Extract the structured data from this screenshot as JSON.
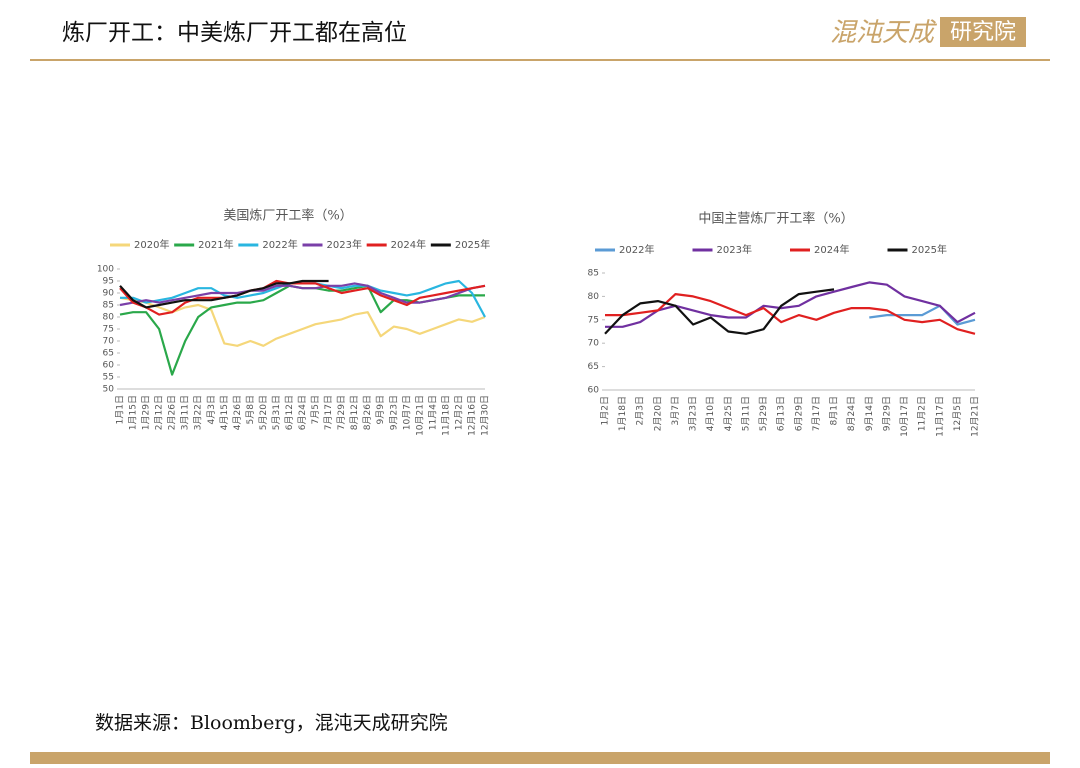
{
  "header": {
    "title": "炼厂开工：中美炼厂开工都在高位",
    "logo_name": "混沌天成",
    "logo_suffix": "研究院"
  },
  "source": "数据来源：Bloomberg，混沌天成研究院",
  "chart_data": [
    {
      "type": "line",
      "title": "美国炼厂开工率（%）",
      "legend": "top",
      "categories": [
        "1月1日",
        "1月15日",
        "1月29日",
        "2月12日",
        "2月26日",
        "3月11日",
        "3月22日",
        "4月3日",
        "4月15日",
        "4月26日",
        "5月8日",
        "5月20日",
        "5月31日",
        "6月12日",
        "6月24日",
        "7月5日",
        "7月17日",
        "7月29日",
        "8月12日",
        "8月26日",
        "9月9日",
        "9月23日",
        "10月7日",
        "10月21日",
        "11月4日",
        "11月18日",
        "12月2日",
        "12月16日",
        "12月30日"
      ],
      "ylim": [
        50,
        100
      ],
      "yticks": [
        50,
        55,
        60,
        65,
        70,
        75,
        80,
        85,
        90,
        95,
        100
      ],
      "series": [
        {
          "name": "2020年",
          "color": "#f5d77a",
          "values": [
            88,
            87,
            86,
            84,
            82,
            84,
            85,
            83,
            69,
            68,
            70,
            68,
            71,
            73,
            75,
            77,
            78,
            79,
            81,
            82,
            72,
            76,
            75,
            73,
            75,
            77,
            79,
            78,
            80
          ]
        },
        {
          "name": "2021年",
          "color": "#2aa84a",
          "values": [
            81,
            82,
            82,
            75,
            56,
            70,
            80,
            84,
            85,
            86,
            86,
            87,
            90,
            93,
            92,
            92,
            91,
            91,
            92,
            93,
            82,
            87,
            87,
            86,
            87,
            88,
            89,
            89,
            89
          ]
        },
        {
          "name": "2022年",
          "color": "#29b6e0",
          "values": [
            88,
            88,
            86,
            87,
            88,
            90,
            92,
            92,
            89,
            88,
            89,
            90,
            92,
            94,
            94,
            94,
            93,
            92,
            93,
            93,
            91,
            90,
            89,
            90,
            92,
            94,
            95,
            90,
            80
          ]
        },
        {
          "name": "2023年",
          "color": "#7a3fa8",
          "values": [
            85,
            86,
            87,
            86,
            87,
            88,
            89,
            90,
            90,
            90,
            91,
            91,
            93,
            93,
            92,
            92,
            93,
            93,
            94,
            93,
            90,
            88,
            86,
            86,
            87,
            88,
            90,
            92,
            93
          ]
        },
        {
          "name": "2024年",
          "color": "#e02020",
          "values": [
            92,
            86,
            84,
            81,
            82,
            86,
            88,
            88,
            88,
            89,
            91,
            92,
            95,
            94,
            94,
            94,
            92,
            90,
            91,
            92,
            89,
            87,
            85,
            88,
            89,
            90,
            91,
            92,
            93
          ]
        },
        {
          "name": "2025年",
          "color": "#111111",
          "values": [
            93,
            87,
            84,
            85,
            86,
            87,
            87,
            87,
            88,
            89,
            91,
            92,
            94,
            94,
            95,
            95,
            95,
            null,
            null,
            null,
            null,
            null,
            null,
            null,
            null,
            null,
            null,
            null,
            null
          ]
        }
      ]
    },
    {
      "type": "line",
      "title": "中国主营炼厂开工率（%）",
      "legend": "top",
      "categories": [
        "1月2日",
        "1月18日",
        "2月3日",
        "2月20日",
        "3月7日",
        "3月23日",
        "4月10日",
        "4月25日",
        "5月11日",
        "5月29日",
        "6月13日",
        "6月29日",
        "7月17日",
        "8月1日",
        "8月24日",
        "9月14日",
        "9月29日",
        "10月17日",
        "11月2日",
        "11月17日",
        "12月5日",
        "12月21日"
      ],
      "ylim": [
        60,
        85
      ],
      "yticks": [
        60,
        65,
        70,
        75,
        80,
        85
      ],
      "series": [
        {
          "name": "2022年",
          "color": "#5b9bd5",
          "values": [
            null,
            null,
            null,
            null,
            null,
            null,
            null,
            null,
            null,
            null,
            null,
            null,
            null,
            null,
            null,
            75.5,
            76,
            76,
            76,
            78,
            74,
            75
          ]
        },
        {
          "name": "2023年",
          "color": "#7030a0",
          "values": [
            73.5,
            73.5,
            74.5,
            77,
            78,
            77,
            76,
            75.5,
            75.5,
            78,
            77.5,
            78,
            80,
            81,
            82,
            83,
            82.5,
            80,
            79,
            78,
            74.5,
            76.5
          ]
        },
        {
          "name": "2024年",
          "color": "#e02020",
          "values": [
            76,
            76,
            76.5,
            77,
            80.5,
            80,
            79,
            77.5,
            76,
            77.5,
            74.5,
            76,
            75,
            76.5,
            77.5,
            77.5,
            77,
            75,
            74.5,
            75,
            73,
            72
          ]
        },
        {
          "name": "2025年",
          "color": "#111111",
          "values": [
            72,
            76,
            78.5,
            79,
            78,
            74,
            75.5,
            72.5,
            72,
            73,
            78,
            80.5,
            81,
            81.5,
            null,
            null,
            null,
            null,
            null,
            null,
            null,
            null
          ]
        }
      ]
    }
  ]
}
